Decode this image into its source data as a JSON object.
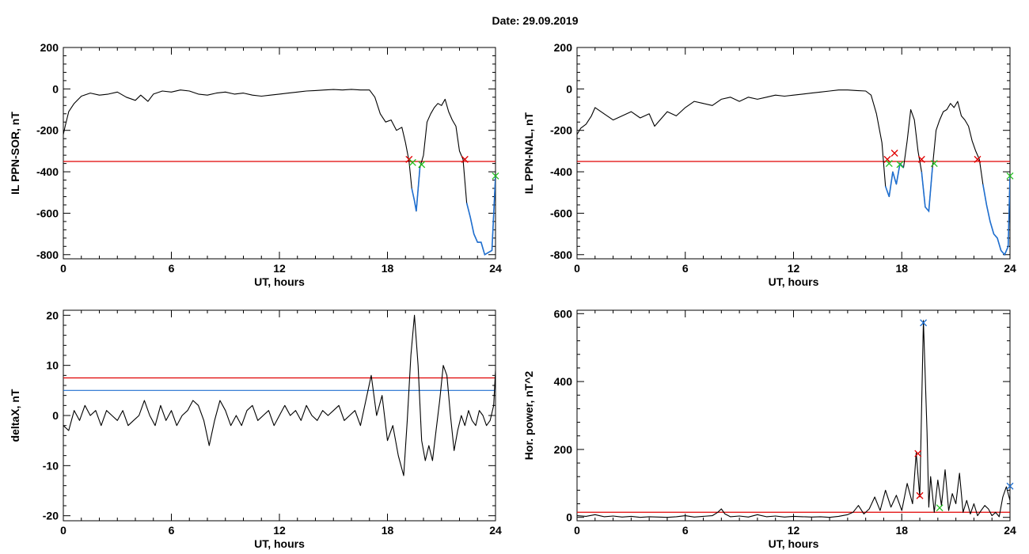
{
  "page": {
    "title": "Date:  29.09.2019"
  },
  "colors": {
    "axis": "#000000",
    "trace": "#000000",
    "threshold_red": "#e00000",
    "threshold_blue": "#1f6fd0",
    "highlight_blue": "#1f6fd0",
    "marker_red": "#e00000",
    "marker_green": "#21c021",
    "marker_blue": "#1f6fd0"
  },
  "chart_data": [
    {
      "id": "sor",
      "type": "line",
      "xlabel": "UT, hours",
      "ylabel": "IL PPN-SOR, nT",
      "xlim": [
        0,
        24
      ],
      "ylim": [
        -820,
        200
      ],
      "xticks": [
        0,
        6,
        12,
        18,
        24
      ],
      "yticks": [
        200,
        0,
        -200,
        -400,
        -600,
        -800
      ],
      "threshold": -350,
      "series": [
        {
          "x": [
            0,
            0.1,
            0.3,
            0.6,
            1,
            1.5,
            2,
            2.5,
            3,
            3.5,
            4,
            4.3,
            4.7,
            5,
            5.5,
            6,
            6.5,
            7,
            7.5,
            8,
            8.5,
            9,
            9.5,
            10,
            10.5,
            11,
            11.5,
            12,
            12.5,
            13,
            13.5,
            14,
            14.5,
            15,
            15.5,
            16,
            16.5,
            17,
            17.3,
            17.6,
            17.9,
            18.2,
            18.5,
            18.8,
            19,
            19.2,
            19.35,
            19.5,
            19.6,
            19.8,
            20,
            20.2,
            20.4,
            20.6,
            20.8,
            21,
            21.2,
            21.4,
            21.6,
            21.8,
            22,
            22.2,
            22.4,
            22.6,
            22.8,
            23,
            23.2,
            23.4,
            23.6,
            23.8,
            24
          ],
          "y": [
            -220,
            -180,
            -110,
            -70,
            -35,
            -20,
            -30,
            -25,
            -15,
            -40,
            -55,
            -30,
            -60,
            -25,
            -10,
            -15,
            -5,
            -10,
            -25,
            -30,
            -20,
            -15,
            -25,
            -20,
            -30,
            -35,
            -30,
            -25,
            -20,
            -15,
            -10,
            -8,
            -5,
            -3,
            -5,
            -2,
            -5,
            -5,
            -40,
            -120,
            -160,
            -150,
            -200,
            -185,
            -260,
            -350,
            -480,
            -540,
            -590,
            -380,
            -320,
            -160,
            -120,
            -90,
            -70,
            -80,
            -50,
            -110,
            -150,
            -180,
            -300,
            -340,
            -550,
            -620,
            -700,
            -740,
            -740,
            -800,
            -790,
            -780,
            -420
          ]
        }
      ],
      "marker_groups": [
        {
          "color": "red",
          "points": [
            {
              "x": 19.2,
              "y": -340
            },
            {
              "x": 22.3,
              "y": -340
            }
          ]
        },
        {
          "color": "green",
          "points": [
            {
              "x": 19.4,
              "y": -355
            },
            {
              "x": 19.9,
              "y": -365
            },
            {
              "x": 24,
              "y": -420
            }
          ]
        }
      ]
    },
    {
      "id": "nal",
      "type": "line",
      "xlabel": "UT, hours",
      "ylabel": "IL PPN-NAL, nT",
      "xlim": [
        0,
        24
      ],
      "ylim": [
        -820,
        200
      ],
      "xticks": [
        0,
        6,
        12,
        18,
        24
      ],
      "yticks": [
        200,
        0,
        -200,
        -400,
        -600,
        -800
      ],
      "threshold": -350,
      "series": [
        {
          "x": [
            0,
            0.2,
            0.5,
            0.8,
            1,
            1.5,
            2,
            2.5,
            3,
            3.5,
            4,
            4.3,
            4.7,
            5,
            5.5,
            6,
            6.5,
            7,
            7.5,
            8,
            8.5,
            9,
            9.5,
            10,
            10.5,
            11,
            11.5,
            12,
            12.5,
            13,
            13.5,
            14,
            14.5,
            15,
            15.5,
            16,
            16.3,
            16.6,
            16.9,
            17.1,
            17.3,
            17.5,
            17.7,
            17.9,
            18.1,
            18.3,
            18.5,
            18.7,
            18.9,
            19.1,
            19.3,
            19.5,
            19.7,
            19.9,
            20.1,
            20.3,
            20.5,
            20.7,
            20.9,
            21.1,
            21.3,
            21.5,
            21.7,
            21.9,
            22.1,
            22.3,
            22.5,
            22.7,
            22.9,
            23.1,
            23.3,
            23.5,
            23.7,
            23.9,
            24
          ],
          "y": [
            -220,
            -190,
            -170,
            -130,
            -90,
            -120,
            -150,
            -130,
            -110,
            -140,
            -120,
            -180,
            -140,
            -110,
            -130,
            -90,
            -60,
            -70,
            -80,
            -50,
            -40,
            -60,
            -40,
            -50,
            -40,
            -30,
            -35,
            -30,
            -25,
            -20,
            -15,
            -10,
            -5,
            -5,
            -8,
            -10,
            -30,
            -120,
            -260,
            -470,
            -520,
            -400,
            -460,
            -360,
            -380,
            -250,
            -100,
            -150,
            -300,
            -400,
            -570,
            -590,
            -380,
            -200,
            -150,
            -110,
            -100,
            -70,
            -90,
            -60,
            -130,
            -150,
            -180,
            -250,
            -300,
            -340,
            -460,
            -560,
            -640,
            -700,
            -720,
            -780,
            -800,
            -760,
            -420
          ]
        }
      ],
      "marker_groups": [
        {
          "color": "red",
          "points": [
            {
              "x": 17.2,
              "y": -340
            },
            {
              "x": 17.6,
              "y": -310
            },
            {
              "x": 19.1,
              "y": -340
            },
            {
              "x": 22.2,
              "y": -340
            }
          ]
        },
        {
          "color": "green",
          "points": [
            {
              "x": 17.3,
              "y": -360
            },
            {
              "x": 17.9,
              "y": -365
            },
            {
              "x": 19.8,
              "y": -360
            },
            {
              "x": 24,
              "y": -420
            }
          ]
        }
      ]
    },
    {
      "id": "deltax",
      "type": "line",
      "xlabel": "UT, hours",
      "ylabel": "deltaX, nT",
      "xlim": [
        0,
        24
      ],
      "ylim": [
        -21,
        21
      ],
      "xticks": [
        0,
        6,
        12,
        18,
        24
      ],
      "yticks": [
        20,
        10,
        0,
        -10,
        -20
      ],
      "thresholds": [
        7.5,
        5
      ],
      "series": [
        {
          "x": [
            0,
            0.3,
            0.6,
            0.9,
            1.2,
            1.5,
            1.8,
            2.1,
            2.4,
            2.7,
            3,
            3.3,
            3.6,
            3.9,
            4.2,
            4.5,
            4.8,
            5.1,
            5.4,
            5.7,
            6,
            6.3,
            6.6,
            6.9,
            7.2,
            7.5,
            7.8,
            8.1,
            8.4,
            8.7,
            9,
            9.3,
            9.6,
            9.9,
            10.2,
            10.5,
            10.8,
            11.1,
            11.4,
            11.7,
            12,
            12.3,
            12.6,
            12.9,
            13.2,
            13.5,
            13.8,
            14.1,
            14.4,
            14.7,
            15,
            15.3,
            15.6,
            15.9,
            16.2,
            16.5,
            16.8,
            17.1,
            17.4,
            17.7,
            18,
            18.3,
            18.6,
            18.9,
            19.1,
            19.3,
            19.5,
            19.7,
            19.9,
            20.1,
            20.3,
            20.5,
            20.7,
            20.9,
            21.1,
            21.3,
            21.5,
            21.7,
            21.9,
            22.1,
            22.3,
            22.5,
            22.7,
            22.9,
            23.1,
            23.3,
            23.5,
            23.7,
            23.9,
            24
          ],
          "y": [
            -2,
            -3,
            1,
            -1,
            2,
            0,
            1,
            -2,
            1,
            0,
            -1,
            1,
            -2,
            -1,
            0,
            3,
            0,
            -2,
            2,
            -1,
            1,
            -2,
            0,
            1,
            3,
            2,
            -1,
            -6,
            -1,
            3,
            1,
            -2,
            0,
            -2,
            1,
            2,
            -1,
            0,
            1,
            -2,
            0,
            2,
            0,
            1,
            -1,
            2,
            0,
            -1,
            1,
            0,
            1,
            2,
            -1,
            0,
            1,
            -2,
            3,
            8,
            0,
            4,
            -5,
            -2,
            -8,
            -12,
            -1,
            12,
            20,
            10,
            -5,
            -9,
            -6,
            -9,
            -3,
            3,
            10,
            8,
            0,
            -7,
            -3,
            0,
            -2,
            1,
            -1,
            -2,
            1,
            0,
            -2,
            -1,
            2,
            9
          ]
        }
      ]
    },
    {
      "id": "power",
      "type": "line",
      "xlabel": "UT, hours",
      "ylabel": "Hor. power, nT^2",
      "xlim": [
        0,
        24
      ],
      "ylim": [
        -10,
        610
      ],
      "xticks": [
        0,
        6,
        12,
        18,
        24
      ],
      "yticks": [
        600,
        400,
        200,
        0
      ],
      "threshold": 15,
      "series": [
        {
          "x": [
            0,
            0.5,
            1,
            1.5,
            2,
            2.5,
            3,
            3.5,
            4,
            4.5,
            5,
            5.5,
            6,
            6.5,
            7,
            7.5,
            7.8,
            8,
            8.2,
            8.5,
            9,
            9.5,
            10,
            10.5,
            11,
            11.5,
            12,
            12.5,
            13,
            13.5,
            14,
            14.5,
            15,
            15.3,
            15.6,
            15.9,
            16.2,
            16.5,
            16.8,
            17.1,
            17.4,
            17.7,
            18,
            18.3,
            18.6,
            18.8,
            19,
            19.2,
            19.4,
            19.5,
            19.6,
            19.8,
            20,
            20.2,
            20.4,
            20.6,
            20.8,
            21,
            21.2,
            21.4,
            21.6,
            21.8,
            22,
            22.2,
            22.4,
            22.6,
            22.8,
            23,
            23.2,
            23.4,
            23.6,
            23.8,
            24
          ],
          "y": [
            5,
            3,
            8,
            2,
            4,
            1,
            3,
            0,
            2,
            1,
            0,
            2,
            5,
            1,
            3,
            5,
            15,
            25,
            10,
            2,
            4,
            1,
            8,
            2,
            4,
            1,
            3,
            2,
            1,
            2,
            0,
            3,
            8,
            15,
            35,
            10,
            25,
            60,
            20,
            80,
            30,
            65,
            20,
            100,
            40,
            190,
            60,
            580,
            250,
            30,
            120,
            15,
            110,
            35,
            140,
            20,
            70,
            40,
            130,
            15,
            50,
            10,
            40,
            5,
            20,
            35,
            25,
            5,
            15,
            2,
            60,
            90,
            50
          ]
        }
      ],
      "marker_groups": [
        {
          "color": "blue",
          "points": [
            {
              "x": 19.2,
              "y": 573
            },
            {
              "x": 24,
              "y": 92
            }
          ]
        },
        {
          "color": "red",
          "points": [
            {
              "x": 18.9,
              "y": 188
            },
            {
              "x": 19.0,
              "y": 64
            }
          ]
        },
        {
          "color": "green",
          "points": [
            {
              "x": 20.1,
              "y": 28
            }
          ]
        }
      ]
    }
  ]
}
